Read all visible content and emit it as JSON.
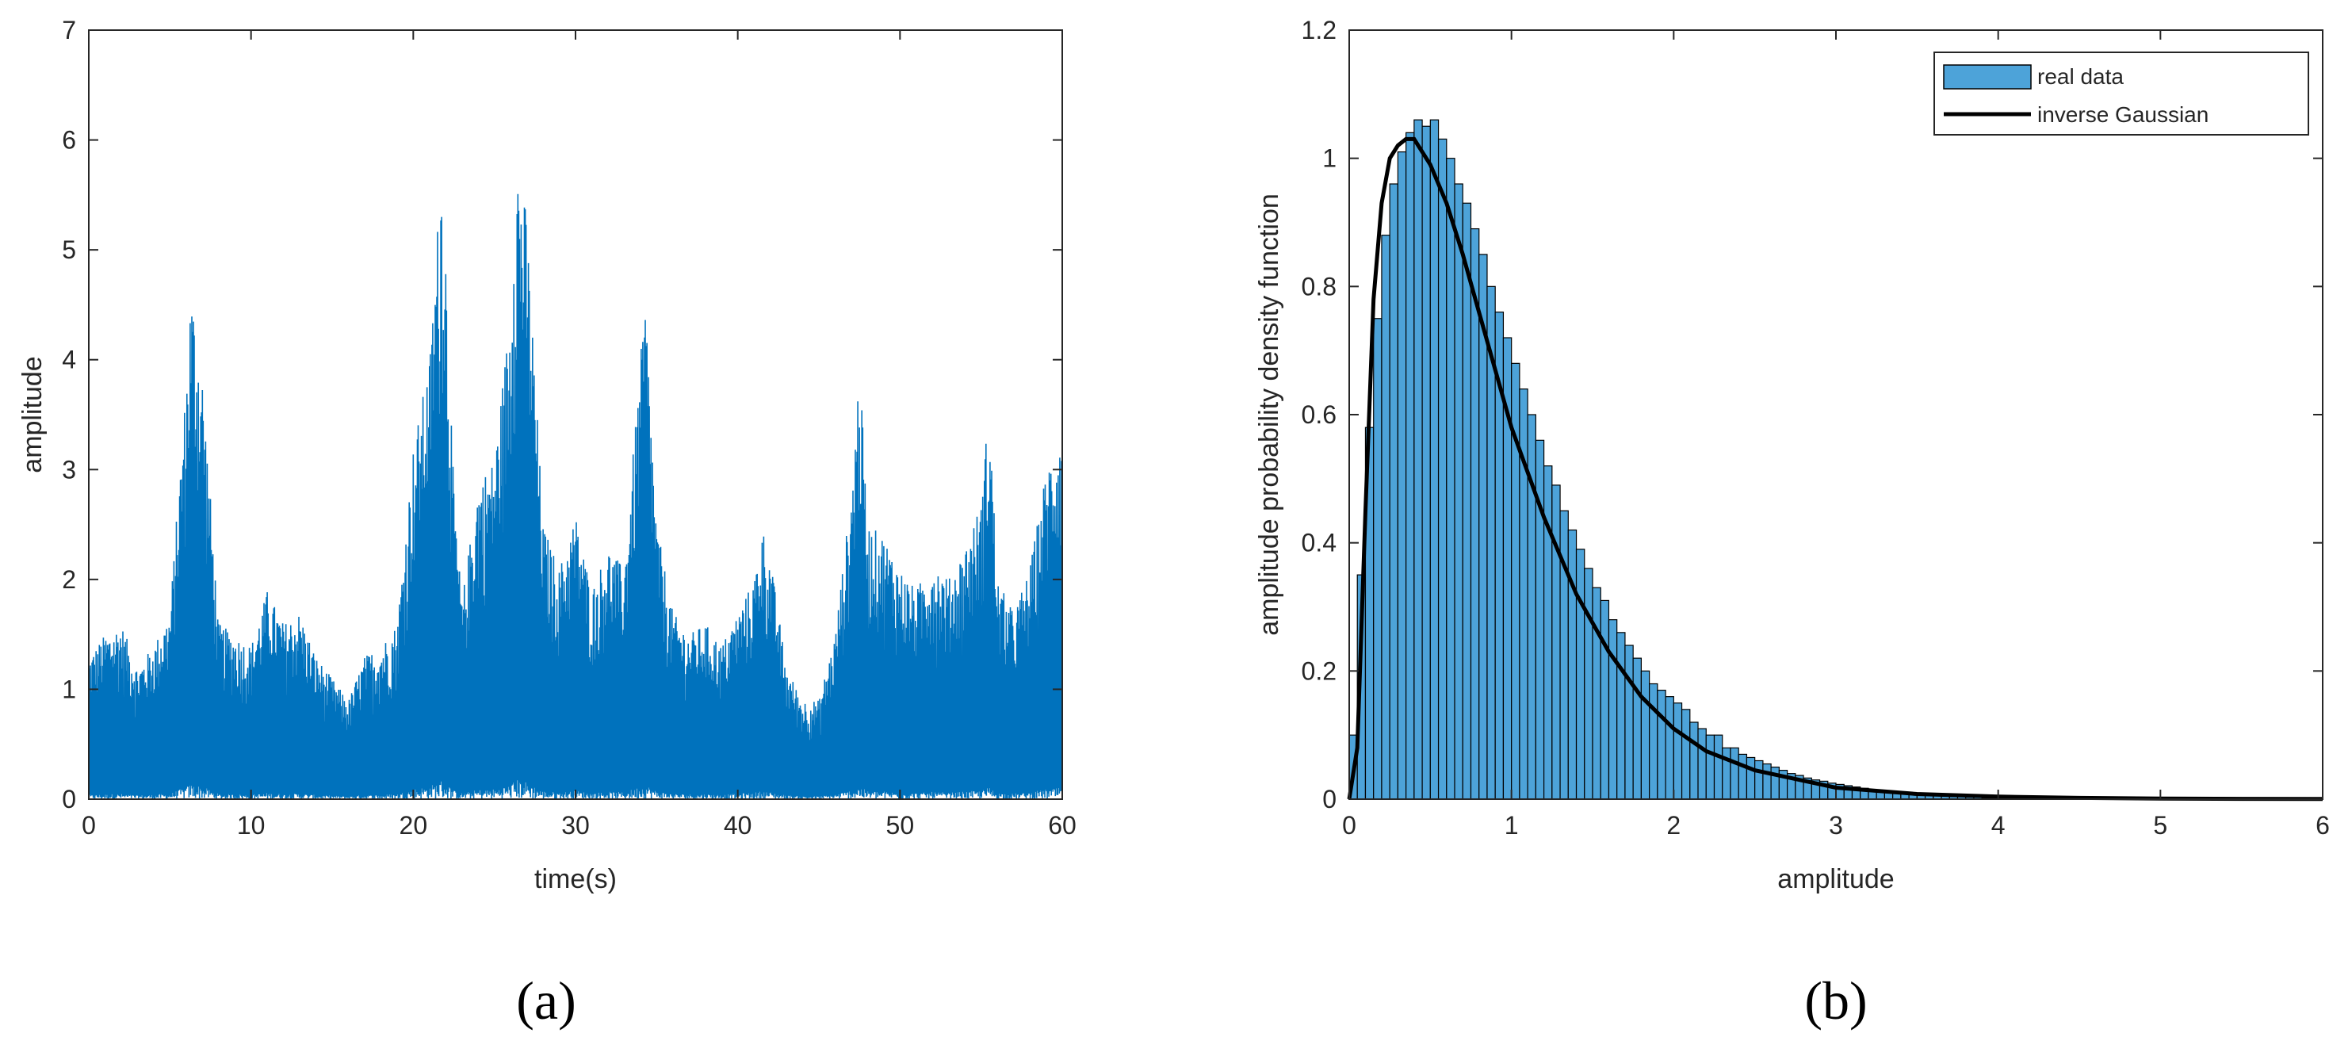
{
  "colors": {
    "signal": "#0072BD",
    "bars": "#4DA3D9",
    "bar_edge": "#000000",
    "fit_line": "#000000",
    "axes": "#262626"
  },
  "chart_data": [
    {
      "type": "line",
      "panel_label": "(a)",
      "title": "",
      "xlabel": "time(s)",
      "ylabel": "amplitude",
      "xlim": [
        0,
        60
      ],
      "ylim": [
        0,
        7
      ],
      "xticks": [
        0,
        10,
        20,
        30,
        40,
        50,
        60
      ],
      "yticks": [
        0,
        1,
        2,
        3,
        4,
        5,
        6,
        7
      ],
      "grid": false,
      "series": [
        {
          "x": [
            0,
            1,
            2,
            3,
            4,
            5,
            6,
            6.3,
            7,
            8,
            9,
            10,
            11,
            12,
            13,
            14,
            15,
            16,
            17,
            18,
            19,
            20,
            21,
            21.8,
            22.5,
            23,
            24,
            25,
            26,
            26.3,
            27,
            28,
            29,
            30,
            31,
            32,
            33,
            34,
            34.3,
            35,
            36,
            37,
            38,
            39,
            40,
            41,
            41.5,
            42,
            43,
            44,
            45,
            46,
            47,
            47.5,
            48,
            49,
            50,
            51,
            52,
            53,
            54,
            55,
            55.5,
            56,
            57,
            58,
            59,
            60
          ],
          "y_max": [
            1.3,
            1.5,
            1.6,
            1.2,
            1.4,
            1.7,
            3.8,
            4.7,
            3.9,
            1.6,
            1.5,
            1.4,
            1.9,
            1.6,
            1.7,
            1.3,
            1.1,
            0.9,
            1.3,
            1.4,
            1.6,
            3.2,
            4.0,
            6.0,
            2.8,
            1.8,
            2.9,
            3.1,
            4.5,
            6.05,
            5.3,
            2.5,
            2.1,
            2.6,
            1.9,
            2.3,
            2.1,
            4.0,
            4.6,
            2.5,
            1.7,
            1.5,
            1.6,
            1.4,
            1.7,
            2.0,
            2.5,
            2.2,
            1.2,
            0.9,
            0.9,
            1.5,
            2.8,
            4.0,
            2.5,
            2.4,
            2.1,
            1.9,
            2.2,
            2.0,
            2.3,
            2.7,
            3.65,
            2.0,
            1.7,
            2.1,
            3.0,
            3.5
          ]
        }
      ]
    },
    {
      "type": "bar",
      "panel_label": "(b)",
      "title": "",
      "xlabel": "amplitude",
      "ylabel": "amplitude probability density function",
      "xlim": [
        0,
        6
      ],
      "ylim": [
        0,
        1.2
      ],
      "xticks": [
        0,
        1,
        2,
        3,
        4,
        5,
        6
      ],
      "yticks": [
        0,
        0.2,
        0.4,
        0.6,
        0.8,
        1,
        1.2
      ],
      "ytick_labels": [
        "0",
        "0.2",
        "0.4",
        "0.6",
        "0.8",
        "1",
        "1.2"
      ],
      "grid": false,
      "legend_position": "top-right",
      "bin_width": 0.05,
      "series": [
        {
          "name": "real data",
          "kind": "histogram",
          "values": [
            0.1,
            0.35,
            0.58,
            0.75,
            0.88,
            0.96,
            1.01,
            1.04,
            1.06,
            1.05,
            1.06,
            1.03,
            1.0,
            0.96,
            0.93,
            0.89,
            0.85,
            0.8,
            0.76,
            0.72,
            0.68,
            0.64,
            0.6,
            0.56,
            0.52,
            0.49,
            0.45,
            0.42,
            0.39,
            0.36,
            0.33,
            0.31,
            0.28,
            0.26,
            0.24,
            0.22,
            0.2,
            0.18,
            0.17,
            0.16,
            0.15,
            0.14,
            0.12,
            0.11,
            0.1,
            0.1,
            0.08,
            0.08,
            0.07,
            0.065,
            0.06,
            0.055,
            0.05,
            0.045,
            0.04,
            0.037,
            0.033,
            0.03,
            0.028,
            0.025,
            0.023,
            0.021,
            0.019,
            0.017,
            0.015,
            0.013,
            0.012,
            0.011,
            0.01,
            0.009,
            0.008,
            0.007,
            0.006,
            0.005,
            0.004,
            0.004,
            0.003,
            0.003,
            0.002,
            0.002
          ]
        },
        {
          "name": "inverse Gaussian",
          "kind": "line",
          "x": [
            0,
            0.05,
            0.1,
            0.15,
            0.2,
            0.25,
            0.3,
            0.35,
            0.4,
            0.45,
            0.5,
            0.6,
            0.7,
            0.8,
            0.9,
            1.0,
            1.2,
            1.4,
            1.6,
            1.8,
            2.0,
            2.2,
            2.5,
            3.0,
            3.5,
            4.0,
            4.5,
            5.0,
            5.5,
            6.0
          ],
          "y": [
            0,
            0.08,
            0.45,
            0.78,
            0.93,
            1.0,
            1.02,
            1.03,
            1.03,
            1.01,
            0.99,
            0.93,
            0.85,
            0.76,
            0.67,
            0.58,
            0.44,
            0.32,
            0.23,
            0.16,
            0.11,
            0.075,
            0.045,
            0.018,
            0.008,
            0.004,
            0.002,
            0.001,
            0.0005,
            0.0002
          ]
        }
      ]
    }
  ]
}
